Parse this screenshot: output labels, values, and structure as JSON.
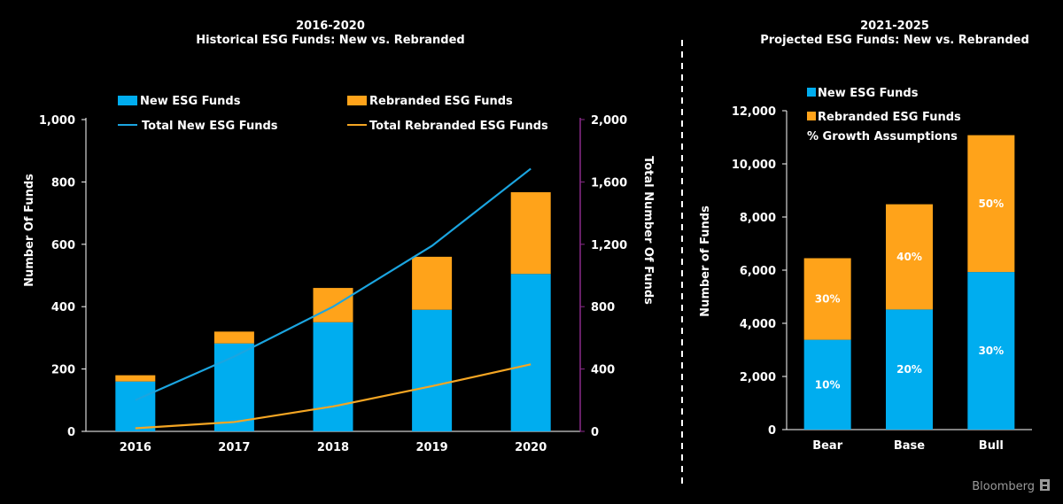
{
  "colors": {
    "new": "#00ADEF",
    "rebranded": "#FFA31A",
    "line_new": "#1BA5E0",
    "line_rebranded": "#F5A623",
    "secondary_axis": "#8B2A8B",
    "axis_line": "#FFFFFF",
    "background": "#000000"
  },
  "brand": {
    "text": "Bloomberg",
    "icon": "bloomberg-logo-icon"
  },
  "chart_data": [
    {
      "type": "bar",
      "stacked": true,
      "title_line1": "2016-2020",
      "title_line2": "Historical ESG Funds: New vs. Rebranded",
      "ylabel": "Number Of Funds",
      "y2label": "Total Number Of Funds",
      "ylim": [
        0,
        1000
      ],
      "y_ticks": [
        0,
        200,
        400,
        600,
        800,
        1000
      ],
      "y_tick_labels": [
        "0",
        "200",
        "400",
        "600",
        "800",
        "1,000"
      ],
      "y2lim": [
        0,
        2000
      ],
      "y2_ticks": [
        0,
        400,
        800,
        1200,
        1600,
        2000
      ],
      "y2_tick_labels": [
        "0",
        "400",
        "800",
        "1,200",
        "1,600",
        "2,000"
      ],
      "categories": [
        "2016",
        "2017",
        "2018",
        "2019",
        "2020"
      ],
      "series": [
        {
          "name": "New ESG Funds",
          "kind": "bar",
          "values": [
            160,
            282,
            350,
            390,
            505
          ]
        },
        {
          "name": "Rebranded ESG Funds",
          "kind": "bar",
          "values": [
            20,
            38,
            110,
            170,
            262
          ]
        },
        {
          "name": "Total New ESG Funds",
          "kind": "line",
          "axis": "secondary",
          "values": [
            200,
            480,
            800,
            1190,
            1685
          ]
        },
        {
          "name": "Total  Rebranded ESG Funds",
          "kind": "line",
          "axis": "secondary",
          "values": [
            20,
            60,
            160,
            290,
            430
          ]
        }
      ],
      "legend_position": "top",
      "grid": false
    },
    {
      "type": "bar",
      "stacked": true,
      "title_line1": "2021-2025",
      "title_line2": "Projected ESG Funds: New vs. Rebranded",
      "ylabel": "Number of Funds",
      "ylim": [
        0,
        12000
      ],
      "y_ticks": [
        0,
        2000,
        4000,
        6000,
        8000,
        10000,
        12000
      ],
      "y_tick_labels": [
        "0",
        "2,000",
        "4,000",
        "6,000",
        "8,000",
        "10,000",
        "12,000"
      ],
      "categories": [
        "Bear",
        "Base",
        "Bull"
      ],
      "series": [
        {
          "name": "New ESG Funds",
          "values": [
            3380,
            4520,
            5930
          ],
          "growth_labels": [
            "10%",
            "20%",
            "30%"
          ]
        },
        {
          "name": "Rebranded ESG Funds",
          "values": [
            3070,
            3960,
            5150
          ],
          "growth_labels": [
            "30%",
            "40%",
            "50%"
          ]
        }
      ],
      "legend_extra": "% Growth Assumptions",
      "legend_position": "top-left",
      "grid": false
    }
  ]
}
